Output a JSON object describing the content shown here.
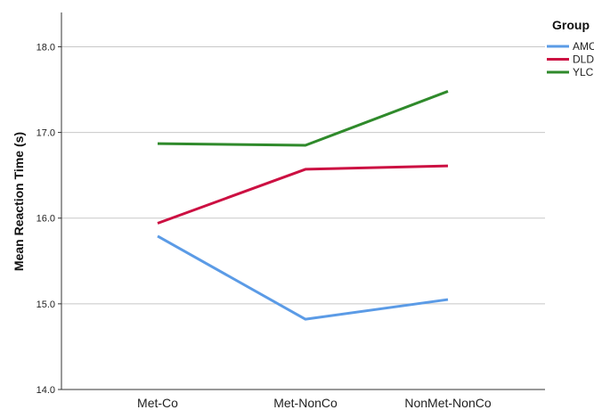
{
  "chart_data": {
    "type": "line",
    "title": "",
    "xlabel": "",
    "ylabel": "Mean Reaction Time (s)",
    "categories": [
      "Met-Co",
      "Met-NonCo",
      "NonMet-NonCo"
    ],
    "ylim": [
      14.0,
      18.4
    ],
    "yticks": [
      "14.0",
      "15.0",
      "16.0",
      "17.0",
      "18.0"
    ],
    "grid": "horizontal",
    "legend": {
      "title": "Group",
      "placement": "top-right"
    },
    "series": [
      {
        "name": "AMC",
        "color": "#5b9be6",
        "values": [
          15.79,
          14.82,
          15.05
        ]
      },
      {
        "name": "DLD",
        "color": "#cc1042",
        "values": [
          15.94,
          16.57,
          16.61
        ]
      },
      {
        "name": "YLC",
        "color": "#2f8a2b",
        "values": [
          16.87,
          16.85,
          17.48
        ]
      }
    ]
  }
}
